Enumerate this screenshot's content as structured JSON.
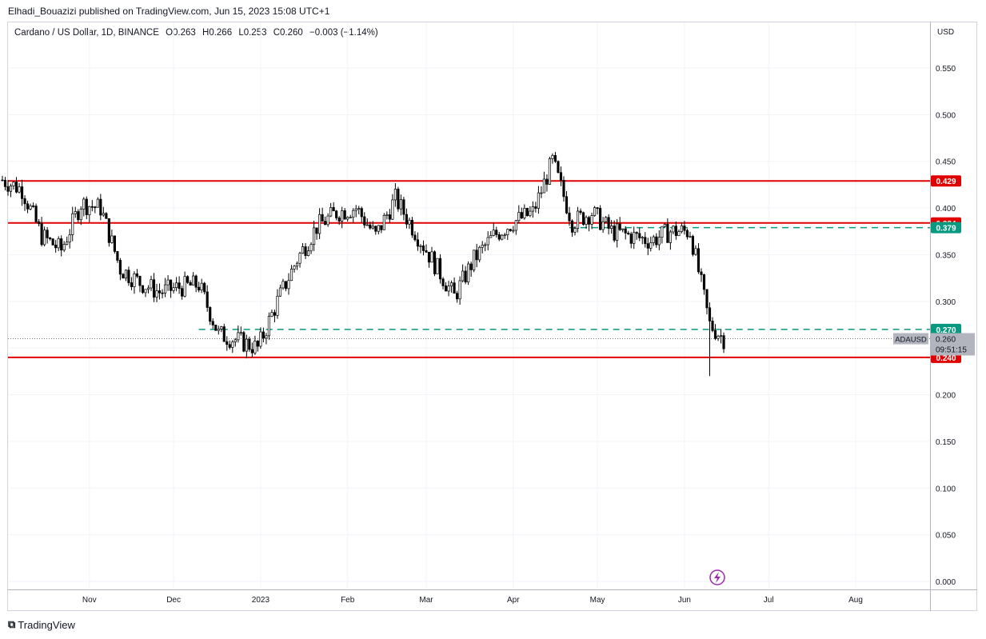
{
  "header": {
    "published": "Elhadi_Bouazizi published on TradingView.com, Jun 15, 2023 15:08 UTC+1"
  },
  "legend": {
    "symbol": "Cardano / US Dollar, 1D, BINANCE",
    "open": "O0.263",
    "high": "H0.266",
    "low": "L0.253",
    "close": "C0.260",
    "change": "−0.003 (−1.14%)"
  },
  "footer": {
    "brand": "TradingView"
  },
  "colors": {
    "up": "#ffffff",
    "down": "#000000",
    "candle_outline": "#000000",
    "resistance": "#f23645",
    "level_red_line": "#e00000",
    "dashed_teal": "#089981",
    "grid": "#f0f3fa",
    "price_label_gray": "#b2b5be"
  },
  "chart_data": {
    "type": "candlestick",
    "currency_label": "USD",
    "x_ticks": [
      "Nov",
      "Dec",
      "2023",
      "Feb",
      "Mar",
      "Apr",
      "May",
      "Jun",
      "Jul",
      "Aug"
    ],
    "y_ticks": [
      "0.550",
      "0.500",
      "0.450",
      "0.400",
      "0.350",
      "0.300",
      "0.250",
      "0.200",
      "0.150",
      "0.100",
      "0.050",
      "0.000"
    ],
    "ylim": [
      0,
      0.58
    ],
    "horizontal_levels": [
      {
        "price": 0.429,
        "label": "0.429",
        "style": "solid"
      },
      {
        "price": 0.384,
        "label": "0.384",
        "style": "solid"
      },
      {
        "price": 0.24,
        "label": "0.240",
        "style": "solid"
      }
    ],
    "dashed_levels": [
      {
        "price": 0.379,
        "label": "0.379",
        "start": "2023-04-21"
      },
      {
        "price": 0.27,
        "label": "0.270",
        "start": "2022-12-10"
      }
    ],
    "current_price": {
      "symbol": "ADAUSD",
      "price": "0.260",
      "countdown": "09:51:15"
    },
    "closes_weekly": [
      [
        "2022-10-01",
        0.43
      ],
      [
        "2022-10-08",
        0.42
      ],
      [
        "2022-10-15",
        0.37
      ],
      [
        "2022-10-22",
        0.355
      ],
      [
        "2022-10-29",
        0.405
      ],
      [
        "2022-11-05",
        0.4
      ],
      [
        "2022-11-12",
        0.335
      ],
      [
        "2022-11-19",
        0.32
      ],
      [
        "2022-11-26",
        0.31
      ],
      [
        "2022-12-03",
        0.315
      ],
      [
        "2022-12-10",
        0.318
      ],
      [
        "2022-12-17",
        0.265
      ],
      [
        "2022-12-24",
        0.258
      ],
      [
        "2022-12-31",
        0.25
      ],
      [
        "2023-01-07",
        0.3
      ],
      [
        "2023-01-14",
        0.345
      ],
      [
        "2023-01-21",
        0.38
      ],
      [
        "2023-01-28",
        0.395
      ],
      [
        "2023-02-04",
        0.4
      ],
      [
        "2023-02-11",
        0.37
      ],
      [
        "2023-02-18",
        0.41
      ],
      [
        "2023-02-25",
        0.375
      ],
      [
        "2023-03-04",
        0.34
      ],
      [
        "2023-03-11",
        0.305
      ],
      [
        "2023-03-18",
        0.345
      ],
      [
        "2023-03-25",
        0.37
      ],
      [
        "2023-04-01",
        0.385
      ],
      [
        "2023-04-08",
        0.395
      ],
      [
        "2023-04-15",
        0.45
      ],
      [
        "2023-04-22",
        0.385
      ],
      [
        "2023-04-29",
        0.395
      ],
      [
        "2023-05-06",
        0.375
      ],
      [
        "2023-05-13",
        0.37
      ],
      [
        "2023-05-20",
        0.365
      ],
      [
        "2023-05-27",
        0.375
      ],
      [
        "2023-06-03",
        0.375
      ],
      [
        "2023-06-10",
        0.275
      ],
      [
        "2023-06-15",
        0.26
      ]
    ],
    "extreme_points": [
      {
        "date": "2023-04-16",
        "high": 0.46
      },
      {
        "date": "2023-06-10",
        "low": 0.22
      }
    ]
  }
}
